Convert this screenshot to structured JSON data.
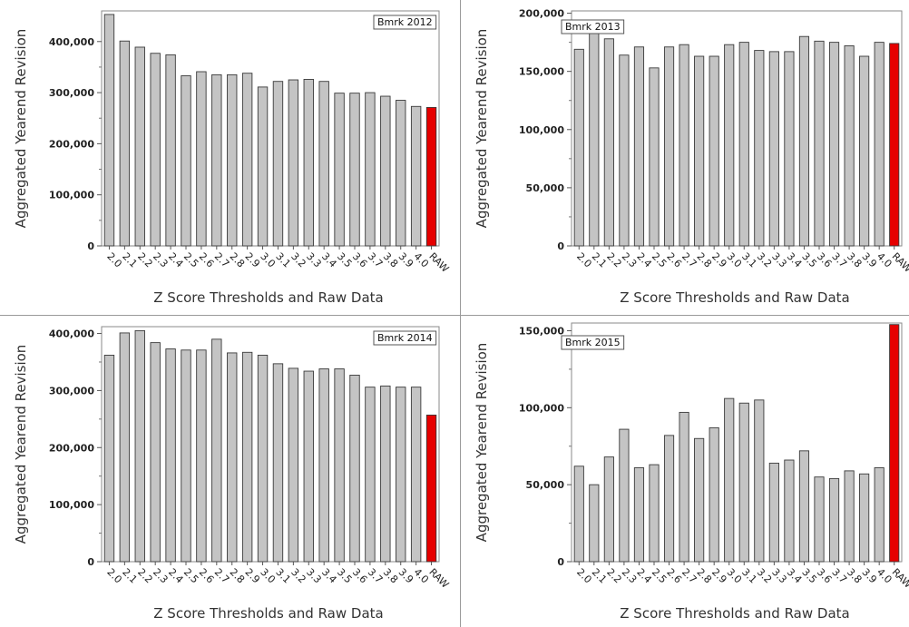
{
  "colors": {
    "bar": "#c4c4c4",
    "bar_highlight": "#e60000",
    "frame": "#8a8a8a"
  },
  "x_tick_labels": [
    "2.0",
    "2.1",
    "2.2",
    "2.3",
    "2.4",
    "2.5",
    "2.6",
    "2.7",
    "2.8",
    "2.9",
    "3.0",
    "3.1",
    "3.2",
    "3.3",
    "3.4",
    "3.5",
    "3.6",
    "3.7",
    "3.8",
    "3.9",
    "4.0",
    "RAW"
  ],
  "chart_data": [
    {
      "type": "bar",
      "legend": "Bmrk 2012",
      "xlabel": "Z Score Thresholds and Raw Data",
      "ylabel": "Aggregated Yearend Revision",
      "categories": [
        "2.0",
        "2.1",
        "2.2",
        "2.3",
        "2.4",
        "2.5",
        "2.6",
        "2.7",
        "2.8",
        "2.9",
        "3.0",
        "3.1",
        "3.2",
        "3.3",
        "3.4",
        "3.5",
        "3.6",
        "3.7",
        "3.8",
        "3.9",
        "4.0",
        "RAW"
      ],
      "values": [
        453000,
        401000,
        389000,
        377000,
        374000,
        333000,
        341000,
        335000,
        335000,
        338000,
        311000,
        322000,
        325000,
        326000,
        322000,
        299000,
        299000,
        300000,
        293000,
        285000,
        273000,
        271000
      ],
      "highlight": "RAW",
      "ylim": [
        0,
        460000
      ],
      "yticks": [
        0,
        100000,
        200000,
        300000,
        400000
      ],
      "ytick_labels": [
        "0",
        "100,000",
        "200,000",
        "300,000",
        "400,000"
      ]
    },
    {
      "type": "bar",
      "legend": "Bmrk 2013",
      "xlabel": "Z Score Thresholds and Raw Data",
      "ylabel": "Aggregated Yearend Revision",
      "categories": [
        "2.0",
        "2.1",
        "2.2",
        "2.3",
        "2.4",
        "2.5",
        "2.6",
        "2.7",
        "2.8",
        "2.9",
        "3.0",
        "3.1",
        "3.2",
        "3.3",
        "3.4",
        "3.5",
        "3.6",
        "3.7",
        "3.8",
        "3.9",
        "4.0",
        "RAW"
      ],
      "values": [
        169000,
        185000,
        178000,
        164000,
        171000,
        153000,
        171000,
        173000,
        163000,
        163000,
        173000,
        175000,
        168000,
        167000,
        167000,
        180000,
        176000,
        175000,
        172000,
        163000,
        175000,
        174000
      ],
      "highlight": "RAW",
      "ylim": [
        0,
        202000
      ],
      "yticks": [
        0,
        50000,
        100000,
        150000,
        200000
      ],
      "ytick_labels": [
        "0",
        "50,000",
        "100,000",
        "150,000",
        "200,000"
      ]
    },
    {
      "type": "bar",
      "legend": "Bmrk 2014",
      "xlabel": "Z Score Thresholds and Raw Data",
      "ylabel": "Aggregated Yearend Revision",
      "categories": [
        "2.0",
        "2.1",
        "2.2",
        "2.3",
        "2.4",
        "2.5",
        "2.6",
        "2.7",
        "2.8",
        "2.9",
        "3.0",
        "3.1",
        "3.2",
        "3.3",
        "3.4",
        "3.5",
        "3.6",
        "3.7",
        "3.8",
        "3.9",
        "4.0",
        "RAW"
      ],
      "values": [
        362000,
        401000,
        405000,
        384000,
        373000,
        371000,
        371000,
        390000,
        366000,
        367000,
        362000,
        347000,
        339000,
        334000,
        338000,
        338000,
        327000,
        306000,
        308000,
        306000,
        306000,
        257000
      ],
      "highlight": "RAW",
      "ylim": [
        0,
        412000
      ],
      "yticks": [
        0,
        100000,
        200000,
        300000,
        400000
      ],
      "ytick_labels": [
        "0",
        "100,000",
        "200,000",
        "300,000",
        "400,000"
      ]
    },
    {
      "type": "bar",
      "legend": "Bmrk 2015",
      "xlabel": "Z Score Thresholds and Raw Data",
      "ylabel": "Aggregated Yearend Revision",
      "categories": [
        "2.0",
        "2.1",
        "2.2",
        "2.3",
        "2.4",
        "2.5",
        "2.6",
        "2.7",
        "2.8",
        "2.9",
        "3.0",
        "3.1",
        "3.2",
        "3.3",
        "3.4",
        "3.5",
        "3.6",
        "3.7",
        "3.8",
        "3.9",
        "4.0",
        "RAW"
      ],
      "values": [
        62000,
        50000,
        68000,
        86000,
        61000,
        63000,
        82000,
        97000,
        80000,
        87000,
        106000,
        103000,
        105000,
        64000,
        66000,
        72000,
        55000,
        54000,
        59000,
        57000,
        61000,
        154000
      ],
      "highlight": "RAW",
      "ylim": [
        0,
        155000
      ],
      "yticks": [
        0,
        50000,
        100000,
        150000
      ],
      "ytick_labels": [
        "0",
        "50,000",
        "100,000",
        "150,000"
      ]
    }
  ]
}
